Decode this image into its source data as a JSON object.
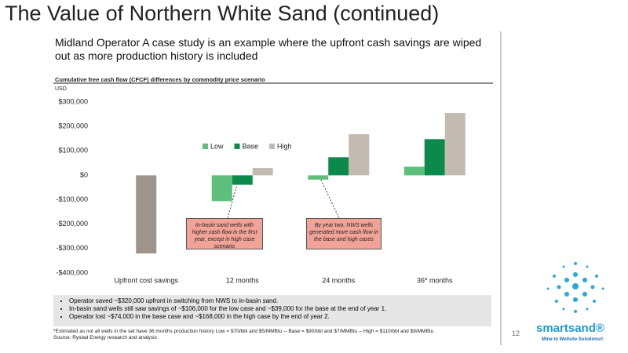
{
  "title": "The Value of Northern White Sand (continued)",
  "heading": "Midland Operator A case study is an example where the upfront cash savings are wiped out as more production history is included",
  "chart_data": {
    "type": "bar",
    "title": "Cumulative free cash flow (CFCF) differences by commodity price scenario",
    "y_unit": "USD",
    "categories": [
      "Upfront cost savings",
      "12 months",
      "24 months",
      "36* months"
    ],
    "upfront_value": -320000,
    "upfront_color": "#9e948c",
    "series": [
      {
        "name": "Low",
        "color": "#5dbf7b",
        "values": [
          null,
          -106000,
          -18000,
          35000
        ]
      },
      {
        "name": "Base",
        "color": "#0b8a4b",
        "values": [
          null,
          -39000,
          74000,
          148000
        ]
      },
      {
        "name": "High",
        "color": "#c3bbb0",
        "values": [
          null,
          30000,
          168000,
          255000
        ]
      }
    ],
    "ylim": [
      -400000,
      300000
    ],
    "yticks": [
      {
        "value": -400000,
        "label": "-$400,000"
      },
      {
        "value": -300000,
        "label": "-$300,000"
      },
      {
        "value": -200000,
        "label": "-$200,000"
      },
      {
        "value": -100000,
        "label": "-$100,000"
      },
      {
        "value": 0,
        "label": "$0"
      },
      {
        "value": 100000,
        "label": "$100,000"
      },
      {
        "value": 200000,
        "label": "$200,000"
      },
      {
        "value": 300000,
        "label": "$300,000"
      }
    ],
    "annotations": [
      "In-basin sand wells with higher cash flow in the first year, except in high case scenario",
      "By year two, NWS wells generated more cash flow in the base and high cases"
    ]
  },
  "bullets": [
    "Operator saved ~$320,000 upfront in switching from NWS to in-basin sand.",
    "In-basin sand wells still saw savings of ~$106,000 for the low case and ~$39,000 for the base at the end of year 1.",
    "Operator lost ~$74,000 in the base case and ~$168,000 in the high case by the end of year 2."
  ],
  "footnotes": [
    "*Estimated as not all wells in the set have 36 months production history  Low = $70/bbl and $5/MMBtu -- Base = $90/bbl and $7/MMBtu -- High = $110/bbl and $9/MMBtu",
    "Source: Rystad Energy research and analysis"
  ],
  "page_number": "12",
  "logo": {
    "name": "smartsand®",
    "tagline": "Mine to Wellsite Solutions®"
  }
}
